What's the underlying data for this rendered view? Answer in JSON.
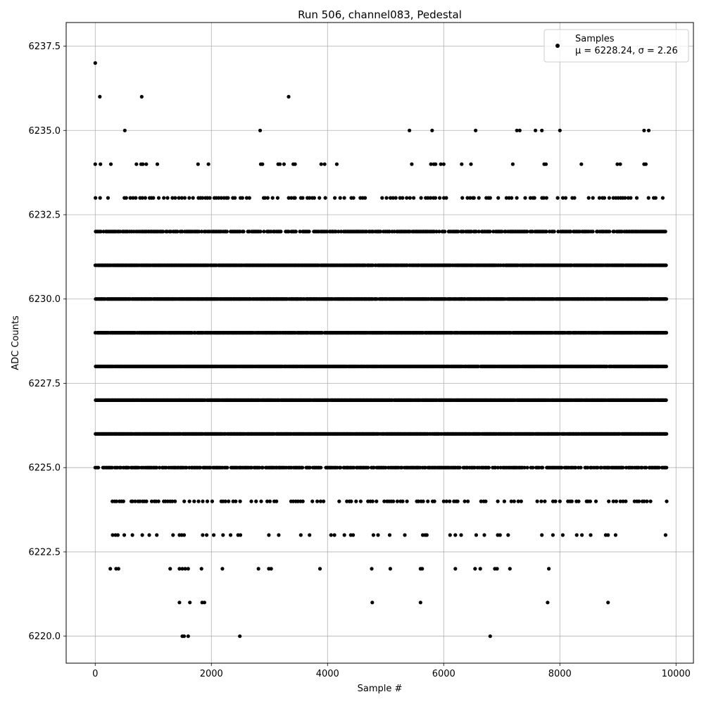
{
  "chart_data": {
    "type": "scatter",
    "title": "Run 506, channel083, Pedestal",
    "xlabel": "Sample #",
    "ylabel": "ADC Counts",
    "xlim": [
      -500,
      10300
    ],
    "ylim": [
      6219.2,
      6238.2
    ],
    "x_ticks": [
      0,
      2000,
      4000,
      6000,
      8000,
      10000
    ],
    "x_tick_labels": [
      "0",
      "2000",
      "4000",
      "6000",
      "8000",
      "10000"
    ],
    "y_ticks": [
      6220.0,
      6222.5,
      6225.0,
      6227.5,
      6230.0,
      6232.5,
      6235.0,
      6237.5
    ],
    "y_tick_labels": [
      "6220.0",
      "6222.5",
      "6225.0",
      "6227.5",
      "6230.0",
      "6232.5",
      "6235.0",
      "6237.5"
    ],
    "grid": true,
    "legend_position": "top-right",
    "series": [
      {
        "name": "Samples",
        "label_line2": "μ = 6228.24, σ = 2.26",
        "color": "#000000",
        "marker": "circle",
        "x_range": [
          0,
          9840
        ],
        "sample_count": 9841,
        "dense_levels": [
          6224,
          6225,
          6226,
          6227,
          6228,
          6229,
          6230,
          6231,
          6232,
          6233
        ],
        "sparse_points": [
          {
            "x": 0,
            "y": 6237
          },
          {
            "x": 80,
            "y": 6236
          },
          {
            "x": 800,
            "y": 6236
          },
          {
            "x": 3330,
            "y": 6236
          },
          {
            "x": 510,
            "y": 6235
          },
          {
            "x": 2840,
            "y": 6235
          },
          {
            "x": 5410,
            "y": 6235
          },
          {
            "x": 5800,
            "y": 6235
          },
          {
            "x": 6550,
            "y": 6235
          },
          {
            "x": 7260,
            "y": 6235
          },
          {
            "x": 7310,
            "y": 6235
          },
          {
            "x": 7580,
            "y": 6235
          },
          {
            "x": 7690,
            "y": 6235
          },
          {
            "x": 8000,
            "y": 6235
          },
          {
            "x": 9450,
            "y": 6235
          },
          {
            "x": 9530,
            "y": 6235
          },
          {
            "x": 0,
            "y": 6234
          },
          {
            "x": 90,
            "y": 6234
          },
          {
            "x": 270,
            "y": 6234
          },
          {
            "x": 710,
            "y": 6234
          },
          {
            "x": 790,
            "y": 6234
          },
          {
            "x": 820,
            "y": 6234
          },
          {
            "x": 880,
            "y": 6234
          },
          {
            "x": 1070,
            "y": 6234
          },
          {
            "x": 1770,
            "y": 6234
          },
          {
            "x": 1950,
            "y": 6234
          },
          {
            "x": 2850,
            "y": 6234
          },
          {
            "x": 2880,
            "y": 6234
          },
          {
            "x": 3150,
            "y": 6234
          },
          {
            "x": 3180,
            "y": 6234
          },
          {
            "x": 3250,
            "y": 6234
          },
          {
            "x": 3410,
            "y": 6234
          },
          {
            "x": 3440,
            "y": 6234
          },
          {
            "x": 3890,
            "y": 6234
          },
          {
            "x": 3950,
            "y": 6234
          },
          {
            "x": 4160,
            "y": 6234
          },
          {
            "x": 5450,
            "y": 6234
          },
          {
            "x": 5780,
            "y": 6234
          },
          {
            "x": 5830,
            "y": 6234
          },
          {
            "x": 5860,
            "y": 6234
          },
          {
            "x": 5950,
            "y": 6234
          },
          {
            "x": 6000,
            "y": 6234
          },
          {
            "x": 6310,
            "y": 6234
          },
          {
            "x": 6470,
            "y": 6234
          },
          {
            "x": 7190,
            "y": 6234
          },
          {
            "x": 7730,
            "y": 6234
          },
          {
            "x": 7760,
            "y": 6234
          },
          {
            "x": 8370,
            "y": 6234
          },
          {
            "x": 8990,
            "y": 6234
          },
          {
            "x": 9040,
            "y": 6234
          },
          {
            "x": 9450,
            "y": 6234
          },
          {
            "x": 9480,
            "y": 6234
          },
          {
            "x": 300,
            "y": 6223
          },
          {
            "x": 350,
            "y": 6223
          },
          {
            "x": 390,
            "y": 6223
          },
          {
            "x": 500,
            "y": 6223
          },
          {
            "x": 640,
            "y": 6223
          },
          {
            "x": 810,
            "y": 6223
          },
          {
            "x": 930,
            "y": 6223
          },
          {
            "x": 1060,
            "y": 6223
          },
          {
            "x": 1340,
            "y": 6223
          },
          {
            "x": 1450,
            "y": 6223
          },
          {
            "x": 1490,
            "y": 6223
          },
          {
            "x": 1530,
            "y": 6223
          },
          {
            "x": 1850,
            "y": 6223
          },
          {
            "x": 1920,
            "y": 6223
          },
          {
            "x": 2040,
            "y": 6223
          },
          {
            "x": 2200,
            "y": 6223
          },
          {
            "x": 2330,
            "y": 6223
          },
          {
            "x": 2460,
            "y": 6223
          },
          {
            "x": 2500,
            "y": 6223
          },
          {
            "x": 2990,
            "y": 6223
          },
          {
            "x": 3160,
            "y": 6223
          },
          {
            "x": 3540,
            "y": 6223
          },
          {
            "x": 3690,
            "y": 6223
          },
          {
            "x": 4060,
            "y": 6223
          },
          {
            "x": 4120,
            "y": 6223
          },
          {
            "x": 4290,
            "y": 6223
          },
          {
            "x": 4400,
            "y": 6223
          },
          {
            "x": 4440,
            "y": 6223
          },
          {
            "x": 4790,
            "y": 6223
          },
          {
            "x": 4870,
            "y": 6223
          },
          {
            "x": 5070,
            "y": 6223
          },
          {
            "x": 5330,
            "y": 6223
          },
          {
            "x": 5640,
            "y": 6223
          },
          {
            "x": 5680,
            "y": 6223
          },
          {
            "x": 5710,
            "y": 6223
          },
          {
            "x": 6110,
            "y": 6223
          },
          {
            "x": 6200,
            "y": 6223
          },
          {
            "x": 6300,
            "y": 6223
          },
          {
            "x": 6560,
            "y": 6223
          },
          {
            "x": 6700,
            "y": 6223
          },
          {
            "x": 6930,
            "y": 6223
          },
          {
            "x": 6970,
            "y": 6223
          },
          {
            "x": 7110,
            "y": 6223
          },
          {
            "x": 7690,
            "y": 6223
          },
          {
            "x": 7880,
            "y": 6223
          },
          {
            "x": 8050,
            "y": 6223
          },
          {
            "x": 8290,
            "y": 6223
          },
          {
            "x": 8380,
            "y": 6223
          },
          {
            "x": 8530,
            "y": 6223
          },
          {
            "x": 8790,
            "y": 6223
          },
          {
            "x": 8830,
            "y": 6223
          },
          {
            "x": 8960,
            "y": 6223
          },
          {
            "x": 9820,
            "y": 6223
          },
          {
            "x": 260,
            "y": 6222
          },
          {
            "x": 360,
            "y": 6222
          },
          {
            "x": 400,
            "y": 6222
          },
          {
            "x": 1290,
            "y": 6222
          },
          {
            "x": 1450,
            "y": 6222
          },
          {
            "x": 1500,
            "y": 6222
          },
          {
            "x": 1550,
            "y": 6222
          },
          {
            "x": 1600,
            "y": 6222
          },
          {
            "x": 1830,
            "y": 6222
          },
          {
            "x": 2190,
            "y": 6222
          },
          {
            "x": 2810,
            "y": 6222
          },
          {
            "x": 2990,
            "y": 6222
          },
          {
            "x": 3030,
            "y": 6222
          },
          {
            "x": 3870,
            "y": 6222
          },
          {
            "x": 4760,
            "y": 6222
          },
          {
            "x": 5080,
            "y": 6222
          },
          {
            "x": 5600,
            "y": 6222
          },
          {
            "x": 5630,
            "y": 6222
          },
          {
            "x": 6200,
            "y": 6222
          },
          {
            "x": 6540,
            "y": 6222
          },
          {
            "x": 6630,
            "y": 6222
          },
          {
            "x": 6880,
            "y": 6222
          },
          {
            "x": 6920,
            "y": 6222
          },
          {
            "x": 7140,
            "y": 6222
          },
          {
            "x": 7810,
            "y": 6222
          },
          {
            "x": 1450,
            "y": 6221
          },
          {
            "x": 1630,
            "y": 6221
          },
          {
            "x": 1840,
            "y": 6221
          },
          {
            "x": 1880,
            "y": 6221
          },
          {
            "x": 4770,
            "y": 6221
          },
          {
            "x": 5600,
            "y": 6221
          },
          {
            "x": 7790,
            "y": 6221
          },
          {
            "x": 8830,
            "y": 6221
          },
          {
            "x": 1500,
            "y": 6220
          },
          {
            "x": 1530,
            "y": 6220
          },
          {
            "x": 1600,
            "y": 6220
          },
          {
            "x": 2490,
            "y": 6220
          },
          {
            "x": 6800,
            "y": 6220
          }
        ]
      }
    ]
  }
}
